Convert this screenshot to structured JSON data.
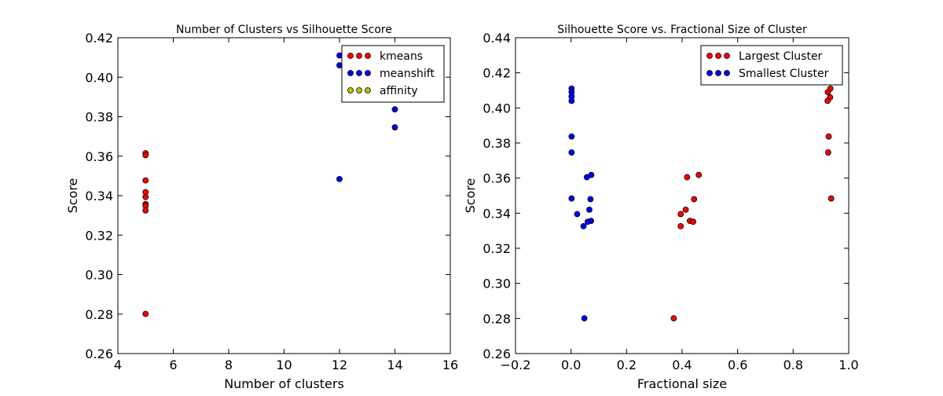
{
  "chart_data": [
    {
      "type": "scatter",
      "title": "Number of Clusters vs Silhouette Score",
      "xlabel": "Number of clusters",
      "ylabel": "Score",
      "xlim": [
        4,
        16
      ],
      "ylim": [
        0.26,
        0.42
      ],
      "xticks": [
        4,
        6,
        8,
        10,
        12,
        14,
        16
      ],
      "yticks": [
        0.26,
        0.28,
        0.3,
        0.32,
        0.34,
        0.36,
        0.38,
        0.4,
        0.42
      ],
      "xtick_labels": [
        "4",
        "6",
        "8",
        "10",
        "12",
        "14",
        "16"
      ],
      "ytick_labels": [
        "0.26",
        "0.28",
        "0.30",
        "0.32",
        "0.34",
        "0.36",
        "0.38",
        "0.40",
        "0.42"
      ],
      "legend": "top-right",
      "grid": false,
      "series": [
        {
          "name": "kmeans",
          "color": "#ff0000",
          "points": [
            [
              5,
              0.3615
            ],
            [
              5,
              0.3605
            ],
            [
              5,
              0.3477
            ],
            [
              5,
              0.3418
            ],
            [
              5,
              0.3393
            ],
            [
              5,
              0.3357
            ],
            [
              5,
              0.3349
            ],
            [
              5,
              0.3325
            ],
            [
              5,
              0.2801
            ]
          ]
        },
        {
          "name": "meanshift",
          "color": "#0000ff",
          "points": [
            [
              12,
              0.411
            ],
            [
              12,
              0.406
            ],
            [
              12,
              0.3484
            ],
            [
              14,
              0.3837
            ],
            [
              14,
              0.3746
            ]
          ]
        },
        {
          "name": "affinity",
          "color": "#bfbf00",
          "points": []
        }
      ]
    },
    {
      "type": "scatter",
      "title": "Silhouette Score vs. Fractional Size of Cluster",
      "xlabel": "Fractional size",
      "ylabel": "Score",
      "xlim": [
        -0.2,
        1.0
      ],
      "ylim": [
        0.26,
        0.44
      ],
      "xticks": [
        -0.2,
        0.0,
        0.2,
        0.4,
        0.6,
        0.8,
        1.0
      ],
      "yticks": [
        0.26,
        0.28,
        0.3,
        0.32,
        0.34,
        0.36,
        0.38,
        0.4,
        0.42,
        0.44
      ],
      "xtick_labels": [
        "−0.2",
        "0.0",
        "0.2",
        "0.4",
        "0.6",
        "0.8",
        "1.0"
      ],
      "ytick_labels": [
        "0.26",
        "0.28",
        "0.30",
        "0.32",
        "0.34",
        "0.36",
        "0.38",
        "0.40",
        "0.42",
        "0.44"
      ],
      "legend": "top-right",
      "grid": false,
      "series": [
        {
          "name": "Largest Cluster",
          "color": "#ff0000",
          "points": [
            [
              0.925,
              0.409
            ],
            [
              0.934,
              0.411
            ],
            [
              0.933,
              0.406
            ],
            [
              0.924,
              0.404
            ],
            [
              0.928,
              0.3837
            ],
            [
              0.926,
              0.3746
            ],
            [
              0.937,
              0.3484
            ],
            [
              0.46,
              0.3618
            ],
            [
              0.418,
              0.3605
            ],
            [
              0.443,
              0.348
            ],
            [
              0.413,
              0.342
            ],
            [
              0.395,
              0.3395
            ],
            [
              0.428,
              0.3356
            ],
            [
              0.44,
              0.3351
            ],
            [
              0.395,
              0.3326
            ],
            [
              0.37,
              0.2801
            ]
          ]
        },
        {
          "name": "Smallest Cluster",
          "color": "#0000ff",
          "points": [
            [
              0.002,
              0.411
            ],
            [
              0.002,
              0.409
            ],
            [
              0.002,
              0.4065
            ],
            [
              0.002,
              0.404
            ],
            [
              0.002,
              0.3837
            ],
            [
              0.002,
              0.3746
            ],
            [
              0.002,
              0.3484
            ],
            [
              0.073,
              0.3618
            ],
            [
              0.057,
              0.3605
            ],
            [
              0.07,
              0.348
            ],
            [
              0.066,
              0.342
            ],
            [
              0.022,
              0.3395
            ],
            [
              0.072,
              0.3356
            ],
            [
              0.06,
              0.3351
            ],
            [
              0.045,
              0.3326
            ],
            [
              0.048,
              0.2801
            ]
          ]
        }
      ]
    }
  ]
}
